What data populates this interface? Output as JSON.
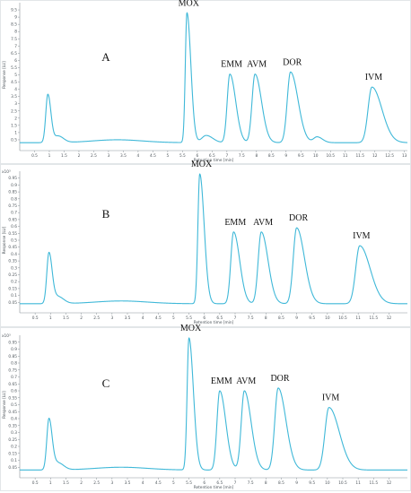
{
  "chart_data": [
    {
      "type": "line",
      "panel_label": "A",
      "xlabel": "Retention time [min]",
      "ylabel": "Response [LU]",
      "y_multiplier": "",
      "xlim": [
        0,
        13.1
      ],
      "ylim": [
        0,
        10
      ],
      "x_ticks": [
        0.5,
        1,
        1.5,
        2,
        2.5,
        3,
        3.5,
        4,
        4.5,
        5,
        5.5,
        6,
        6.5,
        7,
        7.5,
        8,
        8.5,
        9,
        9.5,
        10,
        10.5,
        11,
        11.5,
        12,
        12.5,
        13
      ],
      "x_tick_labels": [
        "0.5",
        "1",
        "1.5",
        "2",
        "2.5",
        "3",
        "3.5",
        "4",
        "4.5",
        "5",
        "5.5",
        "6",
        "6.5",
        "7",
        "7.5",
        "8",
        "8.5",
        "9",
        "9.5",
        "10",
        "10.5",
        "11",
        "11.5",
        "12",
        "12.5",
        "13"
      ],
      "y_ticks": [
        0.5,
        1,
        1.5,
        2,
        2.5,
        3,
        3.5,
        4,
        4.5,
        5,
        5.5,
        6,
        6.5,
        7,
        7.5,
        8,
        8.5,
        9,
        9.5
      ],
      "y_tick_labels": [
        "0.5",
        "1",
        "1.5",
        "2",
        "2.5",
        "3",
        "3.5",
        "4",
        "4.5",
        "5",
        "5.5",
        "6",
        "6.5",
        "7",
        "7.5",
        "8",
        "8.5",
        "9",
        "9.5"
      ],
      "baseline": 0.3,
      "series": [
        {
          "peaks": [
            {
              "label": "",
              "rt": 0.95,
              "height": 3.35,
              "width": 0.07,
              "tail": 1.5
            },
            {
              "label": "",
              "rt": 1.3,
              "height": 0.45,
              "width": 0.12,
              "tail": 1.5
            },
            {
              "label": "MOX",
              "rt": 5.65,
              "height": 9.0,
              "width": 0.055,
              "tail": 2.4
            },
            {
              "label": "",
              "rt": 6.3,
              "height": 0.5,
              "width": 0.15,
              "tail": 1.5
            },
            {
              "label": "EMM",
              "rt": 7.1,
              "height": 4.75,
              "width": 0.09,
              "tail": 2.2
            },
            {
              "label": "AVM",
              "rt": 7.95,
              "height": 4.75,
              "width": 0.1,
              "tail": 2.2
            },
            {
              "label": "DOR",
              "rt": 9.15,
              "height": 4.9,
              "width": 0.11,
              "tail": 2.3
            },
            {
              "label": "",
              "rt": 10.05,
              "height": 0.4,
              "width": 0.12,
              "tail": 1.5
            },
            {
              "label": "IVM",
              "rt": 11.9,
              "height": 3.85,
              "width": 0.13,
              "tail": 2.6
            }
          ]
        }
      ]
    },
    {
      "type": "line",
      "panel_label": "B",
      "xlabel": "Retention time [min]",
      "ylabel": "Response [LU]",
      "y_multiplier": "x10³",
      "xlim": [
        0,
        12.6
      ],
      "ylim": [
        0,
        1.0
      ],
      "x_ticks": [
        0.5,
        1,
        1.5,
        2,
        2.5,
        3,
        3.5,
        4,
        4.5,
        5,
        5.5,
        6,
        6.5,
        7,
        7.5,
        8,
        8.5,
        9,
        9.5,
        10,
        10.5,
        11,
        11.5,
        12
      ],
      "x_tick_labels": [
        "0.5",
        "1",
        "1.5",
        "2",
        "2.5",
        "3",
        "3.5",
        "4",
        "4.5",
        "5",
        "5.5",
        "6",
        "6.5",
        "7",
        "7.5",
        "8",
        "8.5",
        "9",
        "9.5",
        "10",
        "10.5",
        "11",
        "11.5",
        "12"
      ],
      "y_ticks": [
        0.05,
        0.1,
        0.15,
        0.2,
        0.25,
        0.3,
        0.35,
        0.4,
        0.45,
        0.5,
        0.55,
        0.6,
        0.65,
        0.7,
        0.75,
        0.8,
        0.85,
        0.9,
        0.95
      ],
      "y_tick_labels": [
        "0.05",
        "0.1",
        "0.15",
        "0.2",
        "0.25",
        "0.3",
        "0.35",
        "0.4",
        "0.45",
        "0.5",
        "0.55",
        "0.6",
        "0.65",
        "0.7",
        "0.75",
        "0.8",
        "0.85",
        "0.9",
        "0.95"
      ],
      "baseline": 0.04,
      "series": [
        {
          "peaks": [
            {
              "label": "",
              "rt": 0.95,
              "height": 0.37,
              "width": 0.07,
              "tail": 1.5
            },
            {
              "label": "",
              "rt": 1.25,
              "height": 0.05,
              "width": 0.12,
              "tail": 1.5
            },
            {
              "label": "MOX",
              "rt": 5.85,
              "height": 0.94,
              "width": 0.06,
              "tail": 2.4
            },
            {
              "label": "EMM",
              "rt": 6.95,
              "height": 0.52,
              "width": 0.09,
              "tail": 2.2
            },
            {
              "label": "AVM",
              "rt": 7.85,
              "height": 0.52,
              "width": 0.1,
              "tail": 2.2
            },
            {
              "label": "DOR",
              "rt": 9.0,
              "height": 0.55,
              "width": 0.11,
              "tail": 2.3
            },
            {
              "label": "IVM",
              "rt": 11.05,
              "height": 0.42,
              "width": 0.13,
              "tail": 2.6
            }
          ]
        }
      ]
    },
    {
      "type": "line",
      "panel_label": "C",
      "xlabel": "Retention time [min]",
      "ylabel": "Response [LU]",
      "y_multiplier": "x10³",
      "xlim": [
        0,
        12.6
      ],
      "ylim": [
        0,
        1.0
      ],
      "x_ticks": [
        0.5,
        1,
        1.5,
        2,
        2.5,
        3,
        3.5,
        4,
        4.5,
        5,
        5.5,
        6,
        6.5,
        7,
        7.5,
        8,
        8.5,
        9,
        9.5,
        10,
        10.5,
        11,
        11.5,
        12
      ],
      "x_tick_labels": [
        "0.5",
        "1",
        "1.5",
        "2",
        "2.5",
        "3",
        "3.5",
        "4",
        "4.5",
        "5",
        "5.5",
        "6",
        "6.5",
        "7",
        "7.5",
        "8",
        "8.5",
        "9",
        "9.5",
        "10",
        "10.5",
        "11",
        "11.5",
        "12"
      ],
      "y_ticks": [
        0.05,
        0.1,
        0.15,
        0.2,
        0.25,
        0.3,
        0.35,
        0.4,
        0.45,
        0.5,
        0.55,
        0.6,
        0.65,
        0.7,
        0.75,
        0.8,
        0.85,
        0.9,
        0.95
      ],
      "y_tick_labels": [
        "0.05",
        "0.1",
        "0.15",
        "0.2",
        "0.25",
        "0.3",
        "0.35",
        "0.4",
        "0.45",
        "0.5",
        "0.55",
        "0.6",
        "0.65",
        "0.7",
        "0.75",
        "0.8",
        "0.85",
        "0.9",
        "0.95"
      ],
      "baseline": 0.03,
      "series": [
        {
          "peaks": [
            {
              "label": "",
              "rt": 0.95,
              "height": 0.37,
              "width": 0.07,
              "tail": 1.5
            },
            {
              "label": "",
              "rt": 1.25,
              "height": 0.05,
              "width": 0.12,
              "tail": 1.5
            },
            {
              "label": "MOX",
              "rt": 5.5,
              "height": 0.95,
              "width": 0.06,
              "tail": 2.4
            },
            {
              "label": "EMM",
              "rt": 6.5,
              "height": 0.57,
              "width": 0.09,
              "tail": 2.2
            },
            {
              "label": "AVM",
              "rt": 7.3,
              "height": 0.57,
              "width": 0.1,
              "tail": 2.2
            },
            {
              "label": "DOR",
              "rt": 8.4,
              "height": 0.59,
              "width": 0.11,
              "tail": 2.3
            },
            {
              "label": "IVM",
              "rt": 10.05,
              "height": 0.45,
              "width": 0.13,
              "tail": 2.6
            }
          ]
        }
      ]
    }
  ],
  "colors": {
    "trace": "#3fb8d8",
    "axis": "#8a9399",
    "text": "#111111"
  }
}
